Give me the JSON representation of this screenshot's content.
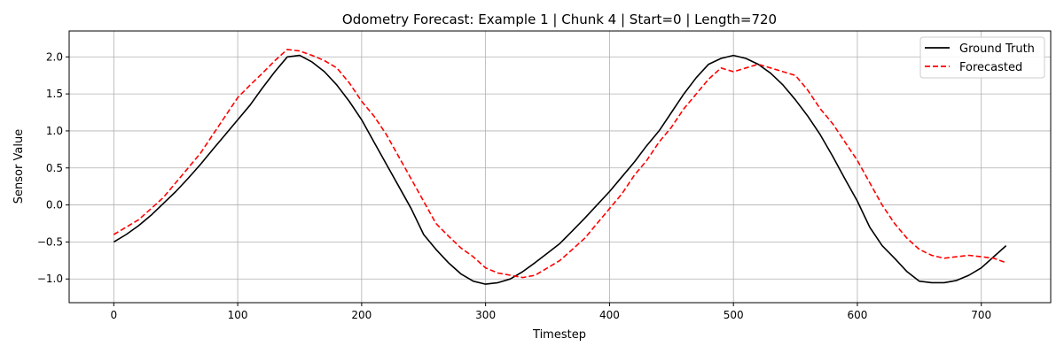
{
  "chart_data": {
    "type": "line",
    "title": "Odometry Forecast: Example 1 | Chunk 4 | Start=0 | Length=720",
    "xlabel": "Timestep",
    "ylabel": "Sensor Value",
    "xlim": [
      -36,
      756
    ],
    "ylim": [
      -1.32,
      2.35
    ],
    "xticks": [
      0,
      100,
      200,
      300,
      400,
      500,
      600,
      700
    ],
    "yticks": [
      -1.0,
      -0.5,
      0.0,
      0.5,
      1.0,
      1.5,
      2.0
    ],
    "xtick_labels": [
      "0",
      "100",
      "200",
      "300",
      "400",
      "500",
      "600",
      "700"
    ],
    "ytick_labels": [
      "−1.0",
      "−0.5",
      "0.0",
      "0.5",
      "1.0",
      "1.5",
      "2.0"
    ],
    "grid": true,
    "legend_position": "top-right",
    "series": [
      {
        "name": "Ground Truth",
        "color": "#000000",
        "style": "solid",
        "x": [
          0,
          10,
          20,
          30,
          40,
          50,
          60,
          70,
          80,
          90,
          100,
          110,
          120,
          130,
          140,
          150,
          160,
          170,
          180,
          190,
          200,
          210,
          220,
          230,
          240,
          250,
          260,
          270,
          280,
          290,
          300,
          310,
          320,
          330,
          340,
          350,
          360,
          370,
          380,
          390,
          400,
          410,
          420,
          430,
          440,
          450,
          460,
          470,
          480,
          490,
          500,
          510,
          520,
          530,
          540,
          550,
          560,
          570,
          580,
          590,
          600,
          610,
          620,
          630,
          640,
          650,
          660,
          670,
          680,
          690,
          700,
          710,
          720
        ],
        "y": [
          -0.5,
          -0.4,
          -0.28,
          -0.14,
          0.02,
          0.18,
          0.36,
          0.55,
          0.75,
          0.95,
          1.15,
          1.35,
          1.58,
          1.8,
          2.0,
          2.02,
          1.93,
          1.8,
          1.62,
          1.4,
          1.15,
          0.85,
          0.55,
          0.25,
          -0.05,
          -0.4,
          -0.6,
          -0.78,
          -0.93,
          -1.03,
          -1.07,
          -1.05,
          -1.0,
          -0.9,
          -0.78,
          -0.65,
          -0.52,
          -0.35,
          -0.18,
          0.0,
          0.18,
          0.38,
          0.58,
          0.8,
          1.0,
          1.25,
          1.5,
          1.72,
          1.9,
          1.98,
          2.02,
          1.98,
          1.9,
          1.78,
          1.62,
          1.42,
          1.2,
          0.95,
          0.66,
          0.35,
          0.05,
          -0.3,
          -0.55,
          -0.72,
          -0.9,
          -1.03,
          -1.05,
          -1.05,
          -1.02,
          -0.95,
          -0.85,
          -0.7,
          -0.55
        ]
      },
      {
        "name": "Forecasted",
        "color": "#ff0000",
        "style": "dashed",
        "x": [
          0,
          10,
          20,
          30,
          40,
          50,
          60,
          70,
          80,
          90,
          100,
          110,
          120,
          130,
          140,
          150,
          160,
          170,
          180,
          190,
          200,
          210,
          220,
          230,
          240,
          250,
          260,
          270,
          280,
          290,
          300,
          310,
          320,
          330,
          340,
          350,
          360,
          370,
          380,
          390,
          400,
          410,
          420,
          430,
          440,
          450,
          460,
          470,
          480,
          490,
          500,
          510,
          520,
          530,
          540,
          550,
          560,
          570,
          580,
          590,
          600,
          610,
          620,
          630,
          640,
          650,
          660,
          670,
          680,
          690,
          700,
          710,
          720
        ],
        "y": [
          -0.4,
          -0.3,
          -0.2,
          -0.05,
          0.1,
          0.3,
          0.5,
          0.7,
          0.95,
          1.2,
          1.45,
          1.62,
          1.78,
          1.95,
          2.1,
          2.08,
          2.02,
          1.95,
          1.85,
          1.65,
          1.4,
          1.2,
          0.95,
          0.65,
          0.35,
          0.05,
          -0.25,
          -0.42,
          -0.58,
          -0.7,
          -0.85,
          -0.92,
          -0.95,
          -0.98,
          -0.95,
          -0.85,
          -0.75,
          -0.6,
          -0.45,
          -0.25,
          -0.05,
          0.15,
          0.4,
          0.6,
          0.85,
          1.05,
          1.3,
          1.5,
          1.7,
          1.85,
          1.8,
          1.85,
          1.9,
          1.85,
          1.8,
          1.75,
          1.55,
          1.3,
          1.1,
          0.85,
          0.6,
          0.3,
          0.0,
          -0.25,
          -0.45,
          -0.6,
          -0.68,
          -0.72,
          -0.7,
          -0.68,
          -0.7,
          -0.72,
          -0.78
        ]
      }
    ]
  }
}
